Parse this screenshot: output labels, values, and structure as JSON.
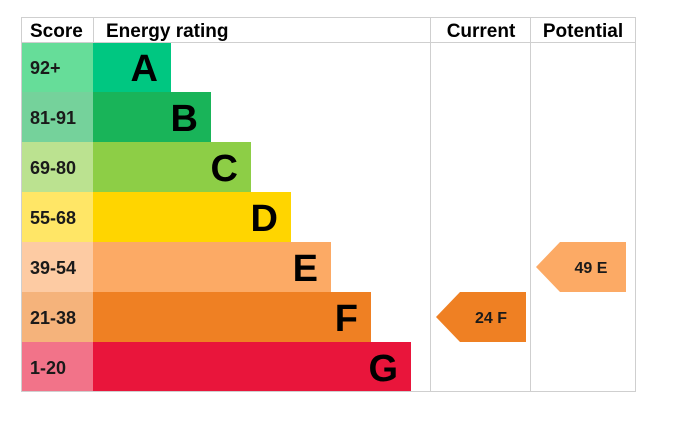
{
  "headers": {
    "score": "Score",
    "energy_rating": "Energy rating",
    "current": "Current",
    "potential": "Potential"
  },
  "chart_data": {
    "type": "bar",
    "bands": [
      {
        "letter": "A",
        "range": "92+",
        "color": "#00c781",
        "score_color": "#66dd99"
      },
      {
        "letter": "B",
        "range": "81-91",
        "color": "#19b459",
        "score_color": "#75d29b"
      },
      {
        "letter": "C",
        "range": "69-80",
        "color": "#8dce46",
        "score_color": "#bbe290"
      },
      {
        "letter": "D",
        "range": "55-68",
        "color": "#ffd500",
        "score_color": "#ffe666"
      },
      {
        "letter": "E",
        "range": "39-54",
        "color": "#fcaa65",
        "score_color": "#fdcba3"
      },
      {
        "letter": "F",
        "range": "21-38",
        "color": "#ef8023",
        "score_color": "#f5b37b"
      },
      {
        "letter": "G",
        "range": "1-20",
        "color": "#e9153b",
        "score_color": "#f27389"
      }
    ],
    "current": {
      "value": 24,
      "letter": "F",
      "label": "24 F",
      "color": "#ef8023"
    },
    "potential": {
      "value": 49,
      "letter": "E",
      "label": "49 E",
      "color": "#fcaa65"
    }
  }
}
